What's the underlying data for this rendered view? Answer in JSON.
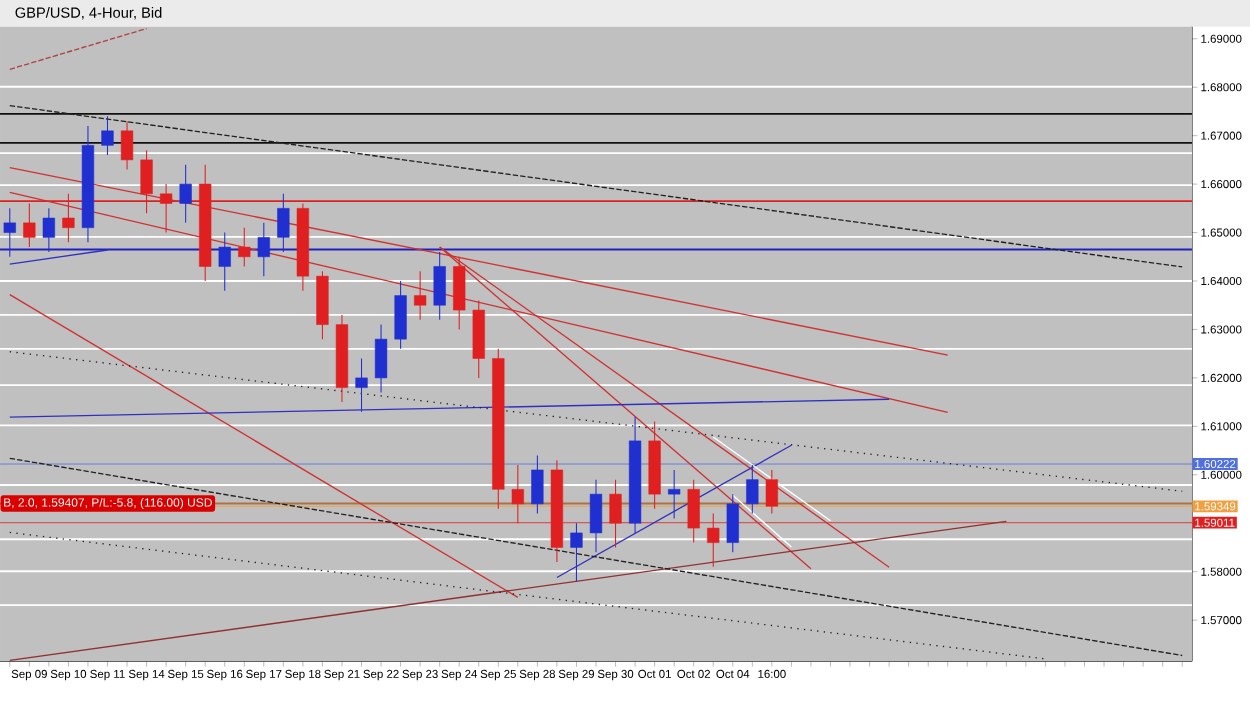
{
  "chart_data": {
    "type": "candlestick",
    "title": "GBP/USD, 4-Hour, Bid",
    "categories": [
      null,
      "Sep 09",
      null,
      "Sep 10",
      null,
      "Sep 11",
      null,
      "Sep 14",
      null,
      "Sep 15",
      null,
      "Sep 16",
      null,
      "Sep 17",
      null,
      "Sep 18",
      null,
      "Sep 21",
      null,
      "Sep 22",
      null,
      "Sep 23",
      null,
      "Sep 24",
      null,
      "Sep 25",
      null,
      "Sep 28",
      null,
      "Sep 29",
      null,
      "Sep 30",
      null,
      "Oct 01",
      null,
      "Oct 02",
      null,
      "Oct 04",
      null,
      "16:00",
      null,
      null,
      null,
      null,
      null,
      null,
      null,
      null,
      null,
      null,
      null,
      null,
      null,
      null,
      null,
      null,
      null,
      null,
      null,
      null,
      null
    ],
    "ohlc": [
      [
        1.65,
        1.655,
        1.645,
        1.652
      ],
      [
        1.652,
        1.656,
        1.647,
        1.649
      ],
      [
        1.649,
        1.655,
        1.646,
        1.653
      ],
      [
        1.653,
        1.658,
        1.648,
        1.651
      ],
      [
        1.651,
        1.672,
        1.648,
        1.668
      ],
      [
        1.668,
        1.674,
        1.666,
        1.671
      ],
      [
        1.671,
        1.673,
        1.663,
        1.665
      ],
      [
        1.665,
        1.667,
        1.654,
        1.658
      ],
      [
        1.658,
        1.66,
        1.65,
        1.656
      ],
      [
        1.656,
        1.664,
        1.652,
        1.66
      ],
      [
        1.66,
        1.664,
        1.64,
        1.643
      ],
      [
        1.643,
        1.65,
        1.638,
        1.647
      ],
      [
        1.647,
        1.651,
        1.643,
        1.645
      ],
      [
        1.645,
        1.652,
        1.641,
        1.649
      ],
      [
        1.649,
        1.658,
        1.646,
        1.655
      ],
      [
        1.655,
        1.656,
        1.638,
        1.641
      ],
      [
        1.641,
        1.642,
        1.628,
        1.631
      ],
      [
        1.631,
        1.633,
        1.615,
        1.618
      ],
      [
        1.618,
        1.624,
        1.613,
        1.62
      ],
      [
        1.62,
        1.631,
        1.617,
        1.628
      ],
      [
        1.628,
        1.64,
        1.626,
        1.637
      ],
      [
        1.637,
        1.642,
        1.632,
        1.635
      ],
      [
        1.635,
        1.646,
        1.632,
        1.643
      ],
      [
        1.643,
        1.645,
        1.63,
        1.634
      ],
      [
        1.634,
        1.636,
        1.62,
        1.624
      ],
      [
        1.624,
        1.626,
        1.593,
        1.597
      ],
      [
        1.597,
        1.602,
        1.59,
        1.594
      ],
      [
        1.594,
        1.604,
        1.592,
        1.601
      ],
      [
        1.601,
        1.603,
        1.582,
        1.585
      ],
      [
        1.585,
        1.59,
        1.578,
        1.588
      ],
      [
        1.588,
        1.599,
        1.584,
        1.596
      ],
      [
        1.596,
        1.599,
        1.585,
        1.59
      ],
      [
        1.59,
        1.612,
        1.588,
        1.607
      ],
      [
        1.607,
        1.611,
        1.593,
        1.596
      ],
      [
        1.596,
        1.601,
        1.591,
        1.597
      ],
      [
        1.597,
        1.599,
        1.586,
        1.589
      ],
      [
        1.589,
        1.592,
        1.581,
        1.586
      ],
      [
        1.586,
        1.596,
        1.584,
        1.594
      ],
      [
        1.594,
        1.602,
        1.592,
        1.599
      ],
      [
        1.599,
        1.601,
        1.592,
        1.5935
      ],
      null,
      null,
      null,
      null,
      null,
      null,
      null,
      null,
      null,
      null,
      null,
      null,
      null,
      null,
      null,
      null,
      null,
      null,
      null,
      null,
      null
    ],
    "colors": [
      "#2030d0",
      "#e02020",
      "#2030d0",
      "#e02020",
      "#2030d0",
      "#2030d0",
      "#e02020",
      "#e02020",
      "#e02020",
      "#2030d0",
      "#e02020",
      "#2030d0",
      "#e02020",
      "#2030d0",
      "#2030d0",
      "#e02020",
      "#e02020",
      "#e02020",
      "#2030d0",
      "#2030d0",
      "#2030d0",
      "#e02020",
      "#2030d0",
      "#e02020",
      "#e02020",
      "#e02020",
      "#e02020",
      "#2030d0",
      "#e02020",
      "#2030d0",
      "#2030d0",
      "#e02020",
      "#2030d0",
      "#e02020",
      "#2030d0",
      "#e02020",
      "#e02020",
      "#2030d0",
      "#2030d0",
      "#e02020",
      null,
      null,
      null,
      null,
      null,
      null,
      null,
      null,
      null,
      null,
      null,
      null,
      null,
      null,
      null,
      null,
      null,
      null,
      null,
      null,
      null
    ],
    "series": [
      {
        "type": "line",
        "color": "#202020",
        "line_style": "dashed",
        "values": [
          1.6762,
          null,
          null,
          null,
          null,
          null,
          null,
          null,
          null,
          null,
          null,
          null,
          null,
          null,
          null,
          null,
          null,
          null,
          null,
          null,
          null,
          null,
          null,
          null,
          null,
          null,
          null,
          null,
          null,
          null,
          null,
          null,
          null,
          null,
          null,
          null,
          null,
          null,
          null,
          null,
          null,
          null,
          null,
          null,
          null,
          null,
          null,
          null,
          null,
          null,
          null,
          null,
          null,
          null,
          null,
          null,
          null,
          null,
          null,
          null,
          1.6429
        ]
      },
      {
        "type": "line",
        "color": "#b04040",
        "line_style": "dashed",
        "values": [
          1.6837,
          null,
          null,
          null,
          null,
          null,
          null,
          1.6921,
          null,
          null,
          null,
          null,
          null,
          null,
          null,
          null,
          null,
          null,
          null,
          null,
          null,
          null,
          null,
          null,
          null,
          null,
          null,
          null,
          null,
          null,
          null,
          null,
          null,
          null,
          null,
          null,
          null,
          null,
          null,
          null,
          null,
          null,
          null,
          null,
          null,
          null,
          null,
          null,
          null,
          null,
          null,
          null,
          null,
          null,
          null,
          null,
          null,
          null,
          null,
          null,
          null
        ]
      },
      {
        "type": "line",
        "color": "#d03030",
        "line_style": "solid",
        "values": [
          1.6634,
          null,
          null,
          null,
          null,
          null,
          null,
          null,
          null,
          null,
          null,
          null,
          null,
          null,
          null,
          null,
          null,
          null,
          null,
          null,
          null,
          null,
          null,
          null,
          null,
          null,
          null,
          null,
          null,
          null,
          null,
          null,
          null,
          null,
          null,
          null,
          null,
          null,
          null,
          null,
          null,
          null,
          null,
          null,
          null,
          null,
          null,
          null,
          1.6247,
          null,
          null,
          null,
          null,
          null,
          null,
          null,
          null,
          null,
          null,
          null,
          null
        ]
      },
      {
        "type": "line",
        "color": "#d03030",
        "line_style": "solid",
        "values": [
          1.6583,
          null,
          null,
          null,
          null,
          null,
          null,
          null,
          null,
          null,
          null,
          null,
          null,
          null,
          null,
          null,
          null,
          null,
          null,
          null,
          null,
          null,
          null,
          null,
          null,
          null,
          null,
          null,
          null,
          null,
          null,
          null,
          null,
          null,
          null,
          null,
          null,
          null,
          null,
          null,
          null,
          null,
          null,
          null,
          null,
          null,
          null,
          null,
          1.6129,
          null,
          null,
          null,
          null,
          null,
          null,
          null,
          null,
          null,
          null,
          null,
          null
        ]
      },
      {
        "type": "line",
        "color": "#d03030",
        "line_style": "solid",
        "values": [
          1.6372,
          null,
          null,
          null,
          null,
          null,
          null,
          null,
          null,
          null,
          null,
          null,
          null,
          null,
          null,
          null,
          null,
          null,
          null,
          null,
          null,
          null,
          null,
          null,
          null,
          null,
          1.5747,
          null,
          null,
          null,
          null,
          null,
          null,
          null,
          null,
          null,
          null,
          null,
          null,
          null,
          null,
          null,
          null,
          null,
          null,
          null,
          null,
          null,
          null,
          null,
          null,
          null,
          null,
          null,
          null,
          null,
          null,
          null,
          null,
          null,
          null
        ]
      },
      {
        "type": "line",
        "color": "#d03030",
        "line_style": "solid",
        "values": [
          null,
          null,
          null,
          null,
          null,
          null,
          null,
          null,
          null,
          null,
          null,
          null,
          null,
          null,
          null,
          null,
          null,
          null,
          null,
          null,
          null,
          null,
          1.647,
          null,
          null,
          null,
          null,
          null,
          null,
          null,
          null,
          null,
          null,
          null,
          null,
          null,
          null,
          null,
          null,
          null,
          null,
          1.5806,
          null,
          null,
          null,
          null,
          null,
          null,
          null,
          null,
          null,
          null,
          null,
          null,
          null,
          null,
          null,
          null,
          null,
          null,
          null
        ]
      },
      {
        "type": "line",
        "color": "#d03030",
        "line_style": "solid",
        "values": [
          null,
          null,
          null,
          null,
          null,
          null,
          null,
          null,
          null,
          null,
          null,
          null,
          null,
          null,
          null,
          null,
          null,
          null,
          null,
          null,
          null,
          null,
          1.647,
          null,
          null,
          null,
          null,
          null,
          null,
          null,
          null,
          null,
          null,
          null,
          null,
          null,
          null,
          null,
          null,
          null,
          null,
          null,
          null,
          null,
          null,
          1.5809,
          null,
          null,
          null,
          null,
          null,
          null,
          null,
          null,
          null,
          null,
          null,
          null,
          null,
          null,
          null
        ]
      },
      {
        "type": "line",
        "color": "#903030",
        "line_style": "solid",
        "values": [
          1.5617,
          null,
          null,
          null,
          null,
          null,
          null,
          null,
          null,
          null,
          null,
          null,
          null,
          null,
          null,
          null,
          null,
          null,
          null,
          null,
          null,
          null,
          null,
          null,
          null,
          null,
          null,
          null,
          null,
          null,
          null,
          null,
          null,
          null,
          null,
          null,
          null,
          null,
          null,
          null,
          null,
          null,
          null,
          null,
          null,
          null,
          null,
          null,
          null,
          null,
          null,
          1.5904,
          null,
          null,
          null,
          null,
          null,
          null,
          null,
          null,
          null
        ]
      },
      {
        "type": "line",
        "color": "#3030c0",
        "line_style": "solid",
        "values": [
          1.6435,
          null,
          null,
          null,
          null,
          1.6464,
          null,
          null,
          null,
          null,
          null,
          null,
          null,
          null,
          null,
          null,
          null,
          null,
          null,
          null,
          null,
          null,
          null,
          null,
          null,
          null,
          null,
          null,
          null,
          null,
          null,
          null,
          null,
          null,
          null,
          null,
          null,
          null,
          null,
          null,
          null,
          null,
          null,
          null,
          null,
          null,
          null,
          null,
          null,
          null,
          null,
          null,
          null,
          null,
          null,
          null,
          null,
          null,
          null,
          null,
          null
        ]
      },
      {
        "type": "line",
        "color": "#3030c0",
        "line_style": "solid",
        "values": [
          1.6119,
          null,
          null,
          null,
          null,
          null,
          null,
          null,
          null,
          null,
          null,
          null,
          null,
          null,
          null,
          null,
          null,
          null,
          null,
          null,
          null,
          null,
          null,
          null,
          null,
          null,
          null,
          null,
          null,
          null,
          null,
          null,
          null,
          null,
          null,
          null,
          null,
          null,
          null,
          null,
          null,
          null,
          null,
          null,
          null,
          1.6156,
          null,
          null,
          null,
          null,
          null,
          null,
          null,
          null,
          null,
          null,
          null,
          null,
          null,
          null,
          null
        ]
      },
      {
        "type": "line",
        "color": "#3030c0",
        "line_style": "solid",
        "values": [
          null,
          null,
          null,
          null,
          null,
          null,
          null,
          null,
          null,
          null,
          null,
          null,
          null,
          null,
          null,
          null,
          null,
          null,
          null,
          null,
          null,
          null,
          null,
          null,
          null,
          null,
          null,
          null,
          1.5788,
          null,
          null,
          null,
          null,
          null,
          null,
          null,
          null,
          null,
          null,
          null,
          1.6061,
          null,
          null,
          null,
          null,
          null,
          null,
          null,
          null,
          null,
          null,
          null,
          null,
          null,
          null,
          null,
          null,
          null,
          null,
          null,
          null
        ]
      },
      {
        "type": "line",
        "color": "#202020",
        "line_style": "dotted",
        "values": [
          1.6254,
          null,
          null,
          null,
          null,
          null,
          null,
          null,
          null,
          null,
          null,
          null,
          null,
          null,
          null,
          null,
          null,
          null,
          null,
          null,
          null,
          null,
          null,
          null,
          null,
          null,
          null,
          null,
          null,
          null,
          null,
          null,
          null,
          null,
          null,
          null,
          null,
          null,
          null,
          null,
          null,
          null,
          null,
          null,
          null,
          null,
          null,
          null,
          null,
          null,
          null,
          null,
          null,
          null,
          null,
          null,
          null,
          null,
          null,
          null,
          1.5966
        ]
      },
      {
        "type": "line",
        "color": "#202020",
        "line_style": "dashed",
        "values": [
          1.6034,
          null,
          null,
          null,
          null,
          null,
          null,
          null,
          null,
          null,
          null,
          null,
          null,
          null,
          null,
          null,
          null,
          null,
          null,
          null,
          null,
          null,
          null,
          null,
          null,
          null,
          null,
          null,
          null,
          null,
          null,
          null,
          null,
          null,
          null,
          null,
          null,
          null,
          null,
          null,
          null,
          null,
          null,
          null,
          null,
          null,
          null,
          null,
          null,
          null,
          null,
          null,
          null,
          null,
          null,
          null,
          null,
          null,
          null,
          null,
          1.5627
        ]
      },
      {
        "type": "line",
        "color": "#202020",
        "line_style": "dotted",
        "values": [
          1.5881,
          null,
          null,
          null,
          null,
          null,
          null,
          null,
          null,
          null,
          null,
          null,
          null,
          null,
          null,
          null,
          null,
          null,
          null,
          null,
          null,
          null,
          null,
          null,
          null,
          null,
          null,
          null,
          null,
          null,
          null,
          null,
          null,
          null,
          null,
          null,
          null,
          null,
          null,
          null,
          null,
          null,
          null,
          null,
          null,
          null,
          null,
          null,
          null,
          null,
          null,
          null,
          null,
          1.562,
          null,
          null,
          null,
          null,
          null,
          null,
          null
        ]
      },
      {
        "type": "line",
        "color": "#ffffff",
        "line_style": "solid",
        "values": [
          null,
          null,
          null,
          null,
          null,
          null,
          null,
          null,
          null,
          null,
          null,
          null,
          null,
          null,
          null,
          null,
          null,
          null,
          null,
          null,
          null,
          null,
          null,
          null,
          null,
          null,
          null,
          null,
          null,
          null,
          null,
          null,
          null,
          null,
          null,
          null,
          1.6078,
          null,
          null,
          null,
          null,
          null,
          1.5905,
          null,
          null,
          null,
          null,
          null,
          null,
          null,
          null,
          null,
          null,
          null,
          null,
          null,
          null,
          null,
          null,
          null,
          null
        ]
      },
      {
        "type": "line",
        "color": "#ffffff",
        "line_style": "solid",
        "values": [
          null,
          null,
          null,
          null,
          null,
          null,
          null,
          null,
          null,
          null,
          null,
          null,
          null,
          null,
          null,
          null,
          null,
          null,
          null,
          null,
          null,
          null,
          null,
          null,
          null,
          null,
          null,
          null,
          null,
          null,
          null,
          null,
          null,
          null,
          null,
          null,
          null,
          1.5958,
          null,
          null,
          1.5851,
          null,
          null,
          null,
          null,
          null,
          null,
          null,
          null,
          null,
          null,
          null,
          null,
          null,
          null,
          null,
          null,
          null,
          null,
          null,
          null
        ]
      }
    ],
    "ref_lines": [
      {
        "axis": "y",
        "value": 1.6801,
        "color": "#ffffff"
      },
      {
        "axis": "y",
        "value": 1.6664,
        "color": "#ffffff"
      },
      {
        "axis": "y",
        "value": 1.6598,
        "color": "#ffffff"
      },
      {
        "axis": "y",
        "value": 1.6491,
        "color": "#ffffff"
      },
      {
        "axis": "y",
        "value": 1.64,
        "color": "#ffffff"
      },
      {
        "axis": "y",
        "value": 1.633,
        "color": "#ffffff"
      },
      {
        "axis": "y",
        "value": 1.626,
        "color": "#ffffff"
      },
      {
        "axis": "y",
        "value": 1.6185,
        "color": "#ffffff"
      },
      {
        "axis": "y",
        "value": 1.6102,
        "color": "#ffffff"
      },
      {
        "axis": "y",
        "value": 1.5979,
        "color": "#ffffff"
      },
      {
        "axis": "y",
        "value": 1.5867,
        "color": "#ffffff"
      },
      {
        "axis": "y",
        "value": 1.5801,
        "color": "#ffffff"
      },
      {
        "axis": "y",
        "value": 1.5731,
        "color": "#ffffff"
      },
      {
        "axis": "y",
        "value": 1.6745,
        "color": "#101010"
      },
      {
        "axis": "y",
        "value": 1.6685,
        "color": "#101010"
      },
      {
        "axis": "y",
        "value": 1.6565,
        "color": "#e02020"
      },
      {
        "axis": "y",
        "value": 1.6465,
        "color": "#2020c0"
      },
      {
        "axis": "y",
        "value": 1.59407,
        "color": "#b07040"
      },
      {
        "axis": "y",
        "value": 1.60222,
        "color": "#5070e0",
        "label": "1.60222"
      },
      {
        "axis": "y",
        "value": 1.59349,
        "color": "#f0a040",
        "label": "1.59349"
      },
      {
        "axis": "y",
        "value": 1.59011,
        "color": "#e02020",
        "label": "1.59011"
      }
    ],
    "annotations": [
      {
        "text": "B, 2.0, 1.59407, P/L:-5.8, (116.00) USD",
        "y": 1.59407
      }
    ],
    "ylim": [
      1.5615,
      1.6925
    ],
    "yticks": [
      {
        "value": 1.57,
        "label": "1.57000"
      },
      {
        "value": 1.58,
        "label": "1.58000"
      },
      {
        "value": 1.59,
        "label": null
      },
      {
        "value": 1.6,
        "label": "1.60000"
      },
      {
        "value": 1.61,
        "label": "1.61000"
      },
      {
        "value": 1.62,
        "label": "1.62000"
      },
      {
        "value": 1.63,
        "label": "1.63000"
      },
      {
        "value": 1.64,
        "label": "1.64000"
      },
      {
        "value": 1.65,
        "label": "1.65000"
      },
      {
        "value": 1.66,
        "label": "1.66000"
      },
      {
        "value": 1.67,
        "label": "1.67000"
      },
      {
        "value": 1.68,
        "label": "1.68000"
      },
      {
        "value": 1.69,
        "label": "1.69000"
      }
    ]
  }
}
